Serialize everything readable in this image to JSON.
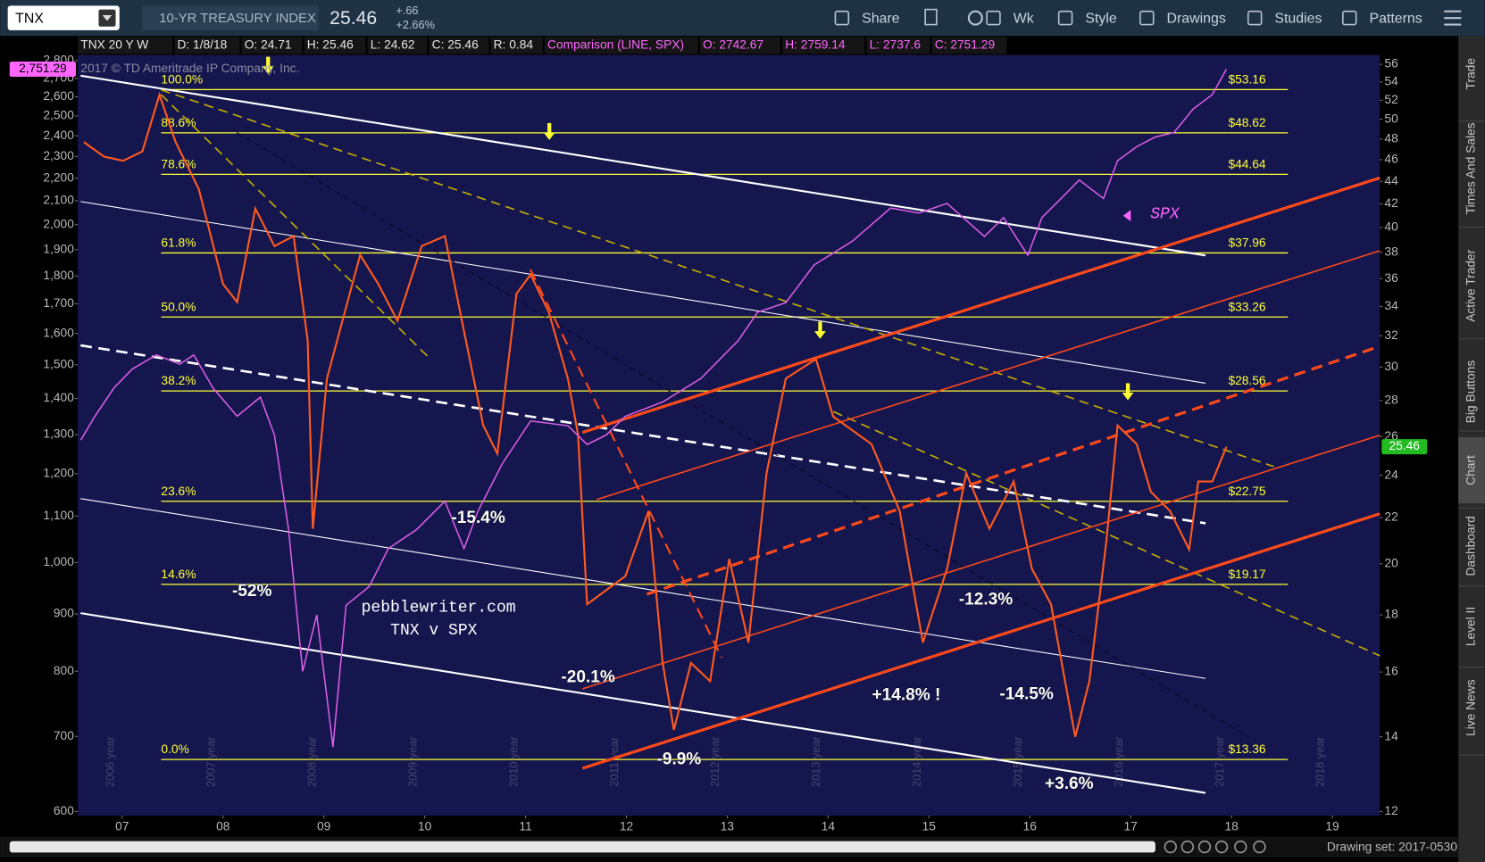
{
  "toolbar": {
    "symbol": "TNX",
    "description": "10-YR TREASURY INDEX",
    "last": "25.46",
    "change": "+.66",
    "change_pct": "+2.66%",
    "buttons": [
      "Share",
      "Wk",
      "Style",
      "Drawings",
      "Studies",
      "Patterns"
    ]
  },
  "info_bar": [
    "TNX 20 Y W",
    "D: 1/8/18",
    "O: 24.71",
    "H: 25.46",
    "L: 24.62",
    "C: 25.46",
    "R: 0.84",
    "Comparison (LINE, SPX)",
    "O: 2742.67",
    "H: 2759.14",
    "L: 2737.6",
    "C: 2751.29"
  ],
  "chart_data": {
    "type": "line",
    "log_scale": true,
    "grid": false,
    "xlim": [
      2006.56,
      2019.47
    ],
    "xticks": [
      {
        "value": 2007,
        "label": "07"
      },
      {
        "value": 2008,
        "label": "08"
      },
      {
        "value": 2009,
        "label": "09"
      },
      {
        "value": 2010,
        "label": "10"
      },
      {
        "value": 2011,
        "label": "11"
      },
      {
        "value": 2012,
        "label": "12"
      },
      {
        "value": 2013,
        "label": "13"
      },
      {
        "value": 2014,
        "label": "14"
      },
      {
        "value": 2015,
        "label": "15"
      },
      {
        "value": 2016,
        "label": "16"
      },
      {
        "value": 2017,
        "label": "17"
      },
      {
        "value": 2018,
        "label": "18"
      },
      {
        "value": 2019,
        "label": "19"
      }
    ],
    "ylim": [
      595,
      2833
    ],
    "yticks": [
      {
        "value": 2800,
        "label": "2,800"
      },
      {
        "value": 2700,
        "label": "2,700"
      },
      {
        "value": 2600,
        "label": "2,600"
      },
      {
        "value": 2500,
        "label": "2,500"
      },
      {
        "value": 2400,
        "label": "2,400"
      },
      {
        "value": 2300,
        "label": "2,300"
      },
      {
        "value": 2200,
        "label": "2,200"
      },
      {
        "value": 2100,
        "label": "2,100"
      },
      {
        "value": 2000,
        "label": "2,000"
      },
      {
        "value": 1900,
        "label": "1,900"
      },
      {
        "value": 1800,
        "label": "1,800"
      },
      {
        "value": 1700,
        "label": "1,700"
      },
      {
        "value": 1600,
        "label": "1,600"
      },
      {
        "value": 1500,
        "label": "1,500"
      },
      {
        "value": 1400,
        "label": "1,400"
      },
      {
        "value": 1300,
        "label": "1,300"
      },
      {
        "value": 1200,
        "label": "1,200"
      },
      {
        "value": 1100,
        "label": "1,100"
      },
      {
        "value": 1000,
        "label": "1,000"
      },
      900,
      800,
      700,
      600
    ],
    "y2lim": [
      11.9,
      57.1
    ],
    "y2ticks": [
      56,
      54,
      52,
      50,
      48,
      46,
      44,
      42,
      40,
      38,
      36,
      34,
      32,
      30,
      28,
      26,
      24,
      22,
      20,
      18,
      16,
      14,
      12
    ],
    "series": [
      {
        "name": "TNX",
        "color": "#ff5a1f",
        "axis": "y2",
        "x": [
          2006.62,
          2006.82,
          2007.01,
          2007.2,
          2007.37,
          2007.53,
          2007.76,
          2008.0,
          2008.14,
          2008.32,
          2008.51,
          2008.7,
          2008.84,
          2008.89,
          2009.03,
          2009.36,
          2009.54,
          2009.73,
          2009.97,
          2010.2,
          2010.39,
          2010.58,
          2010.72,
          2010.91,
          2011.05,
          2011.23,
          2011.42,
          2011.52,
          2011.61,
          2011.99,
          2012.22,
          2012.36,
          2012.47,
          2012.64,
          2012.83,
          2013.02,
          2013.21,
          2013.39,
          2013.58,
          2013.88,
          2014.05,
          2014.43,
          2014.71,
          2014.94,
          2015.18,
          2015.37,
          2015.6,
          2015.84,
          2016.02,
          2016.21,
          2016.45,
          2016.59,
          2016.76,
          2016.87,
          2017.06,
          2017.2,
          2017.39,
          2017.58,
          2017.67,
          2017.81,
          2017.95
        ],
        "values": [
          47.7,
          46.3,
          45.9,
          46.8,
          52.6,
          47.7,
          43.3,
          35.6,
          34.3,
          41.6,
          38.5,
          39.3,
          31.7,
          21.5,
          29.3,
          37.8,
          35.6,
          33.0,
          38.5,
          39.3,
          32.3,
          26.6,
          25.1,
          34.9,
          36.3,
          33.6,
          29.3,
          26.1,
          18.4,
          19.5,
          22.3,
          16.3,
          14.2,
          16.3,
          15.7,
          20.2,
          17.0,
          24.1,
          29.3,
          30.5,
          27.1,
          25.6,
          22.3,
          17.0,
          19.8,
          24.1,
          21.5,
          23.7,
          19.8,
          18.4,
          14.0,
          15.7,
          21.0,
          26.6,
          25.6,
          23.2,
          22.3,
          20.6,
          23.7,
          23.7,
          25.46
        ]
      },
      {
        "name": "SPX",
        "color": "#e060e8",
        "axis": "y",
        "x": [
          2006.59,
          2006.73,
          2006.92,
          2007.1,
          2007.34,
          2007.57,
          2007.71,
          2007.9,
          2008.14,
          2008.37,
          2008.51,
          2008.65,
          2008.79,
          2008.93,
          2009.09,
          2009.22,
          2009.45,
          2009.64,
          2009.92,
          2010.2,
          2010.39,
          2010.53,
          2010.77,
          2011.05,
          2011.42,
          2011.61,
          2011.8,
          2011.99,
          2012.36,
          2012.74,
          2013.11,
          2013.3,
          2013.58,
          2013.86,
          2014.24,
          2014.62,
          2014.9,
          2015.18,
          2015.55,
          2015.74,
          2015.98,
          2016.12,
          2016.31,
          2016.49,
          2016.73,
          2016.87,
          2017.06,
          2017.24,
          2017.43,
          2017.62,
          2017.81,
          2017.95
        ],
        "values": [
          1286,
          1350,
          1431,
          1487,
          1531,
          1502,
          1531,
          1431,
          1350,
          1404,
          1299,
          1070,
          800,
          898,
          685,
          916,
          952,
          1029,
          1070,
          1134,
          1029,
          1112,
          1225,
          1337,
          1324,
          1274,
          1299,
          1350,
          1390,
          1459,
          1577,
          1671,
          1704,
          1841,
          1933,
          2069,
          2048,
          2089,
          1952,
          2029,
          1878,
          2029,
          2110,
          2192,
          2110,
          2280,
          2347,
          2393,
          2416,
          2536,
          2611,
          2751.29
        ]
      }
    ],
    "price_tags": [
      {
        "value": 2751.29,
        "label": "2,751.29",
        "axis": "y",
        "color": "#ff66ff"
      },
      {
        "value": 25.46,
        "label": "25.46",
        "axis": "y2",
        "color": "#22bb22"
      }
    ],
    "fib_levels": [
      {
        "ratio": "100.0%",
        "value": 53.16,
        "label": "$53.16"
      },
      {
        "ratio": "88.6%",
        "value": 48.62,
        "label": "$48.62"
      },
      {
        "ratio": "78.6%",
        "value": 44.64,
        "label": "$44.64"
      },
      {
        "ratio": "61.8%",
        "value": 37.96,
        "label": "$37.96"
      },
      {
        "ratio": "50.0%",
        "value": 33.26,
        "label": "$33.26"
      },
      {
        "ratio": "38.2%",
        "value": 28.56,
        "label": "$28.56"
      },
      {
        "ratio": "23.6%",
        "value": 22.75,
        "label": "$22.75"
      },
      {
        "ratio": "14.6%",
        "value": 19.17,
        "label": "$19.17"
      },
      {
        "ratio": "0.0%",
        "value": 13.36,
        "label": "$13.36"
      }
    ],
    "fib_color": "#ffff33",
    "copyright": "2017 © TD Ameritrade IP Company, Inc.",
    "annotations": [
      "-52%",
      "-15.4%",
      "pebblewriter.com",
      "TNX v SPX",
      "-20.1%",
      "-9.9%",
      "+14.8% !",
      "-12.3%",
      "-14.5%",
      "+3.6%",
      "SPX"
    ],
    "year_labels": [
      "2006 year",
      "2007 year",
      "2008 year",
      "2009 year",
      "2010 year",
      "2011 year",
      "2012 year",
      "2013 year",
      "2014 year",
      "2015 year",
      "2016 year",
      "2017 year",
      "2018 year"
    ]
  },
  "side_tabs": [
    "Trade",
    "Times And Sales",
    "Active Trader",
    "Big Buttons",
    "Chart",
    "Dashboard",
    "Level II",
    "Live News"
  ],
  "footer": {
    "drawing_set": "Drawing set: 2017-0530"
  }
}
